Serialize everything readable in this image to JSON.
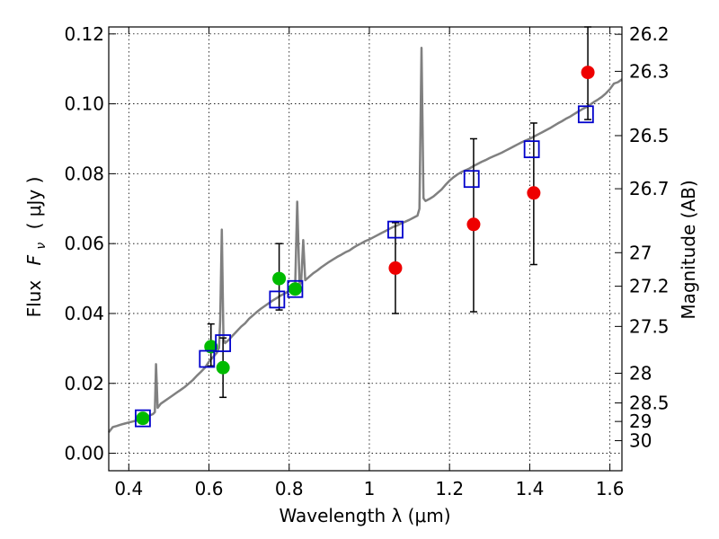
{
  "chart_data": {
    "type": "scatter",
    "title": "",
    "xlabel": "Wavelength  λ (μm)",
    "ylabel_prefix": "Flux",
    "ylabel_var": "F",
    "ylabel_sub": "ν",
    "ylabel_unit": "( μJy )",
    "y2label": "Magnitude (AB)",
    "xlim": [
      0.35,
      1.63
    ],
    "ylim": [
      -0.005,
      0.122
    ],
    "grid": true,
    "x_ticks": [
      {
        "value": 0.4,
        "label": "0.4"
      },
      {
        "value": 0.6,
        "label": "0.6"
      },
      {
        "value": 0.8,
        "label": "0.8"
      },
      {
        "value": 1.0,
        "label": "1"
      },
      {
        "value": 1.2,
        "label": "1.2"
      },
      {
        "value": 1.4,
        "label": "1.4"
      },
      {
        "value": 1.6,
        "label": "1.6"
      }
    ],
    "y_ticks": [
      {
        "value": 0.0,
        "label": "0.00"
      },
      {
        "value": 0.02,
        "label": "0.02"
      },
      {
        "value": 0.04,
        "label": "0.04"
      },
      {
        "value": 0.06,
        "label": "0.06"
      },
      {
        "value": 0.08,
        "label": "0.08"
      },
      {
        "value": 0.1,
        "label": "0.10"
      },
      {
        "value": 0.12,
        "label": "0.12"
      }
    ],
    "y2_ticks": [
      {
        "label": "26.2",
        "flux": 0.1199
      },
      {
        "label": "26.3",
        "flux": 0.1093
      },
      {
        "label": "26.5",
        "flux": 0.0909
      },
      {
        "label": "26.7",
        "flux": 0.0757
      },
      {
        "label": "27",
        "flux": 0.0574
      },
      {
        "label": "27.2",
        "flux": 0.0478
      },
      {
        "label": "27.5",
        "flux": 0.0363
      },
      {
        "label": "28",
        "flux": 0.0229
      },
      {
        "label": "28.5",
        "flux": 0.0144
      },
      {
        "label": "29",
        "flux": 0.0091
      },
      {
        "label": "30",
        "flux": 0.0036
      }
    ],
    "series": [
      {
        "name": "model-spectrum",
        "kind": "line",
        "color": "#808080",
        "points": [
          [
            0.35,
            0.006
          ],
          [
            0.36,
            0.0075
          ],
          [
            0.37,
            0.0078
          ],
          [
            0.38,
            0.0082
          ],
          [
            0.39,
            0.0085
          ],
          [
            0.4,
            0.0088
          ],
          [
            0.41,
            0.0091
          ],
          [
            0.42,
            0.0094
          ],
          [
            0.43,
            0.0098
          ],
          [
            0.44,
            0.0102
          ],
          [
            0.45,
            0.0107
          ],
          [
            0.46,
            0.0112
          ],
          [
            0.465,
            0.0118
          ],
          [
            0.468,
            0.0255
          ],
          [
            0.472,
            0.013
          ],
          [
            0.48,
            0.0142
          ],
          [
            0.49,
            0.015
          ],
          [
            0.5,
            0.0158
          ],
          [
            0.51,
            0.0166
          ],
          [
            0.52,
            0.0174
          ],
          [
            0.53,
            0.0182
          ],
          [
            0.54,
            0.019
          ],
          [
            0.55,
            0.02
          ],
          [
            0.56,
            0.021
          ],
          [
            0.57,
            0.0222
          ],
          [
            0.58,
            0.0233
          ],
          [
            0.59,
            0.0245
          ],
          [
            0.6,
            0.0262
          ],
          [
            0.61,
            0.0275
          ],
          [
            0.62,
            0.0288
          ],
          [
            0.625,
            0.0302
          ],
          [
            0.628,
            0.038
          ],
          [
            0.632,
            0.064
          ],
          [
            0.636,
            0.033
          ],
          [
            0.64,
            0.0315
          ],
          [
            0.65,
            0.0325
          ],
          [
            0.66,
            0.0338
          ],
          [
            0.67,
            0.035
          ],
          [
            0.68,
            0.0362
          ],
          [
            0.69,
            0.0372
          ],
          [
            0.7,
            0.0385
          ],
          [
            0.71,
            0.0395
          ],
          [
            0.72,
            0.0405
          ],
          [
            0.73,
            0.0414
          ],
          [
            0.74,
            0.0422
          ],
          [
            0.75,
            0.043
          ],
          [
            0.76,
            0.0438
          ],
          [
            0.77,
            0.0445
          ],
          [
            0.78,
            0.0452
          ],
          [
            0.79,
            0.0458
          ],
          [
            0.8,
            0.0465
          ],
          [
            0.81,
            0.047
          ],
          [
            0.815,
            0.0475
          ],
          [
            0.82,
            0.072
          ],
          [
            0.826,
            0.048
          ],
          [
            0.83,
            0.049
          ],
          [
            0.835,
            0.061
          ],
          [
            0.84,
            0.0495
          ],
          [
            0.85,
            0.0505
          ],
          [
            0.86,
            0.0515
          ],
          [
            0.87,
            0.0523
          ],
          [
            0.88,
            0.0532
          ],
          [
            0.89,
            0.054
          ],
          [
            0.9,
            0.0548
          ],
          [
            0.91,
            0.0555
          ],
          [
            0.92,
            0.0562
          ],
          [
            0.93,
            0.0568
          ],
          [
            0.94,
            0.0575
          ],
          [
            0.95,
            0.058
          ],
          [
            0.96,
            0.0588
          ],
          [
            0.97,
            0.0595
          ],
          [
            0.98,
            0.0601
          ],
          [
            0.99,
            0.0607
          ],
          [
            1.0,
            0.0612
          ],
          [
            1.01,
            0.0618
          ],
          [
            1.02,
            0.0624
          ],
          [
            1.03,
            0.063
          ],
          [
            1.04,
            0.0636
          ],
          [
            1.05,
            0.0642
          ],
          [
            1.06,
            0.0648
          ],
          [
            1.07,
            0.0652
          ],
          [
            1.08,
            0.0658
          ],
          [
            1.09,
            0.0663
          ],
          [
            1.1,
            0.0668
          ],
          [
            1.11,
            0.0674
          ],
          [
            1.12,
            0.068
          ],
          [
            1.125,
            0.07
          ],
          [
            1.13,
            0.116
          ],
          [
            1.135,
            0.073
          ],
          [
            1.14,
            0.0722
          ],
          [
            1.15,
            0.0728
          ],
          [
            1.16,
            0.0735
          ],
          [
            1.17,
            0.0745
          ],
          [
            1.18,
            0.0755
          ],
          [
            1.19,
            0.0768
          ],
          [
            1.2,
            0.078
          ],
          [
            1.21,
            0.079
          ],
          [
            1.22,
            0.0798
          ],
          [
            1.23,
            0.0805
          ],
          [
            1.24,
            0.081
          ],
          [
            1.25,
            0.0815
          ],
          [
            1.26,
            0.0822
          ],
          [
            1.27,
            0.0828
          ],
          [
            1.28,
            0.0834
          ],
          [
            1.29,
            0.0839
          ],
          [
            1.3,
            0.0845
          ],
          [
            1.31,
            0.085
          ],
          [
            1.32,
            0.0855
          ],
          [
            1.33,
            0.086
          ],
          [
            1.34,
            0.0866
          ],
          [
            1.35,
            0.0872
          ],
          [
            1.36,
            0.0878
          ],
          [
            1.37,
            0.0884
          ],
          [
            1.38,
            0.089
          ],
          [
            1.39,
            0.0895
          ],
          [
            1.4,
            0.09
          ],
          [
            1.41,
            0.0906
          ],
          [
            1.42,
            0.0912
          ],
          [
            1.43,
            0.0918
          ],
          [
            1.44,
            0.0924
          ],
          [
            1.45,
            0.093
          ],
          [
            1.46,
            0.0937
          ],
          [
            1.47,
            0.0944
          ],
          [
            1.48,
            0.095
          ],
          [
            1.49,
            0.0957
          ],
          [
            1.5,
            0.0963
          ],
          [
            1.51,
            0.097
          ],
          [
            1.52,
            0.0977
          ],
          [
            1.53,
            0.0984
          ],
          [
            1.54,
            0.099
          ],
          [
            1.55,
            0.0997
          ],
          [
            1.56,
            0.1005
          ],
          [
            1.57,
            0.1012
          ],
          [
            1.58,
            0.102
          ],
          [
            1.59,
            0.103
          ],
          [
            1.6,
            0.1042
          ],
          [
            1.61,
            0.1058
          ],
          [
            1.62,
            0.1062
          ],
          [
            1.63,
            0.107
          ]
        ]
      },
      {
        "name": "model-photometry",
        "kind": "square",
        "color": "#0000cc",
        "points": [
          [
            0.435,
            0.01
          ],
          [
            0.595,
            0.027
          ],
          [
            0.635,
            0.0315
          ],
          [
            0.77,
            0.044
          ],
          [
            0.815,
            0.047
          ],
          [
            1.065,
            0.064
          ],
          [
            1.255,
            0.0785
          ],
          [
            1.405,
            0.087
          ],
          [
            1.54,
            0.097
          ]
        ]
      },
      {
        "name": "observed-green",
        "kind": "circle",
        "color": "#00bb00",
        "points": [
          {
            "x": 0.435,
            "y": 0.01
          },
          {
            "x": 0.605,
            "y": 0.0305,
            "err": [
              0.025,
              0.037
            ]
          },
          {
            "x": 0.635,
            "y": 0.0245,
            "err": [
              0.016,
              0.033
            ]
          },
          {
            "x": 0.775,
            "y": 0.05,
            "err": [
              0.041,
              0.06
            ]
          },
          {
            "x": 0.815,
            "y": 0.047
          }
        ]
      },
      {
        "name": "observed-red",
        "kind": "circle",
        "color": "#ee0000",
        "points": [
          {
            "x": 1.065,
            "y": 0.053,
            "err": [
              0.04,
              0.066
            ]
          },
          {
            "x": 1.26,
            "y": 0.0655,
            "err": [
              0.0405,
              0.09
            ]
          },
          {
            "x": 1.41,
            "y": 0.0745,
            "err": [
              0.054,
              0.0945
            ]
          },
          {
            "x": 1.545,
            "y": 0.109,
            "err": [
              0.0955,
              0.122
            ]
          }
        ]
      }
    ]
  }
}
